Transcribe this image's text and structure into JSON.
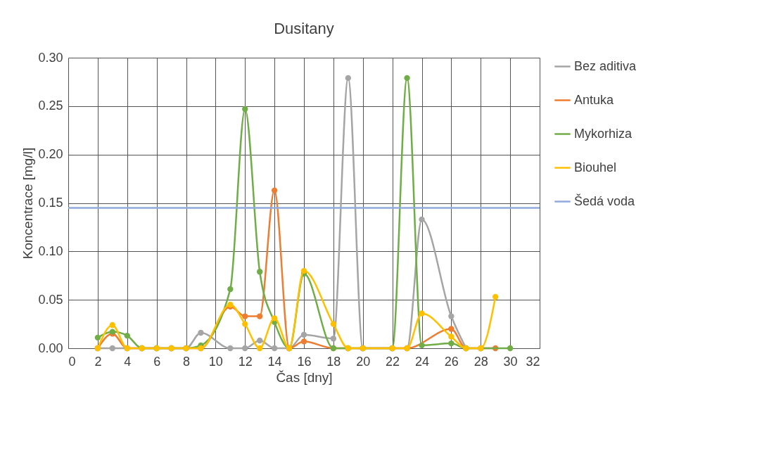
{
  "chart_data": {
    "type": "line",
    "title": "Dusitany",
    "xlabel": "Čas [dny]",
    "ylabel": "Koncentrace [mg/l]",
    "xlim": [
      0,
      32
    ],
    "xticks": [
      0,
      2,
      4,
      6,
      8,
      10,
      12,
      14,
      16,
      18,
      20,
      22,
      24,
      26,
      28,
      30,
      32
    ],
    "ylim": [
      0,
      0.3
    ],
    "yticks": [
      {
        "value": 0,
        "label": "0.00"
      },
      {
        "value": 0.05,
        "label": "0.05"
      },
      {
        "value": 0.1,
        "label": "0.10"
      },
      {
        "value": 0.15,
        "label": "0.15"
      },
      {
        "value": 0.2,
        "label": "0.20"
      },
      {
        "value": 0.25,
        "label": "0.25"
      },
      {
        "value": 0.3,
        "label": "0.30"
      }
    ],
    "grid": true,
    "legend": "right",
    "marker": "circle",
    "line_style": "solid",
    "series": [
      {
        "name": "Bez aditiva",
        "color": "#a5a5a5",
        "x": [
          2,
          3,
          4,
          5,
          6,
          7,
          8,
          9,
          11,
          12,
          13,
          14,
          15,
          16,
          18,
          19,
          20,
          22,
          23,
          24,
          26,
          27
        ],
        "values": [
          0,
          0,
          0,
          0,
          0,
          0,
          0,
          0.016,
          0,
          0,
          0.008,
          0,
          0,
          0.014,
          0.01,
          0.279,
          0,
          0,
          0,
          0.133,
          0.033,
          0
        ]
      },
      {
        "name": "Antuka",
        "color": "#ed7d31",
        "x": [
          2,
          3,
          4,
          5,
          6,
          7,
          8,
          9,
          11,
          12,
          13,
          14,
          15,
          16,
          18,
          19,
          20,
          22,
          23,
          26,
          27,
          28,
          29
        ],
        "values": [
          0,
          0.015,
          0,
          0,
          0,
          0,
          0,
          0,
          0.043,
          0.033,
          0.033,
          0.163,
          0,
          0.007,
          0,
          0,
          0,
          0,
          0,
          0.02,
          0,
          0,
          0
        ]
      },
      {
        "name": "Mykorhiza",
        "color": "#70ad47",
        "x": [
          2,
          3,
          4,
          5,
          6,
          7,
          8,
          9,
          11,
          12,
          13,
          14,
          15,
          16,
          18,
          19,
          20,
          22,
          23,
          24,
          26,
          27,
          28,
          30
        ],
        "values": [
          0.011,
          0.017,
          0.013,
          0,
          0,
          0,
          0,
          0.003,
          0.061,
          0.247,
          0.079,
          0.027,
          0,
          0.077,
          0,
          0,
          0,
          0,
          0.279,
          0.003,
          0.005,
          0,
          0,
          0
        ]
      },
      {
        "name": "Biouhel",
        "color": "#ffc000",
        "x": [
          2,
          3,
          4,
          5,
          6,
          7,
          8,
          9,
          11,
          12,
          13,
          14,
          15,
          16,
          18,
          19,
          20,
          22,
          23,
          24,
          26,
          27,
          28,
          29
        ],
        "values": [
          0,
          0.024,
          0,
          0,
          0,
          0,
          0,
          0,
          0.045,
          0.025,
          0,
          0.031,
          0,
          0.08,
          0.025,
          0,
          0,
          0,
          0,
          0.036,
          0.012,
          0,
          0,
          0.053
        ]
      },
      {
        "name": "Šedá voda",
        "color": "#8faadc",
        "type": "line",
        "marker": "none",
        "x": [
          0,
          32
        ],
        "values": [
          0.145,
          0.145
        ]
      }
    ]
  }
}
